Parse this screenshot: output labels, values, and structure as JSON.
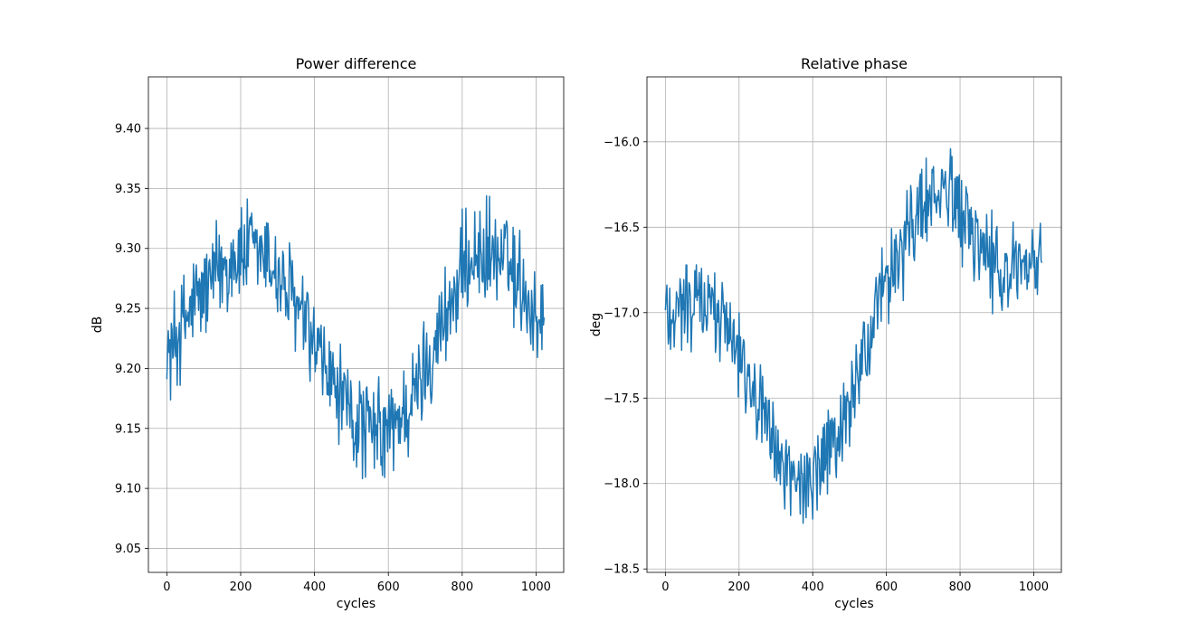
{
  "chart_data": [
    {
      "type": "line",
      "title": "Power difference",
      "xlabel": "cycles",
      "ylabel": "dB",
      "xlim": [
        -50,
        1075
      ],
      "ylim": [
        9.03,
        9.443
      ],
      "xticks": [
        0,
        200,
        400,
        600,
        800,
        1000
      ],
      "yticks": [
        9.05,
        9.1,
        9.15,
        9.2,
        9.25,
        9.3,
        9.35,
        9.4
      ],
      "ytick_labels": [
        "9.05",
        "9.10",
        "9.15",
        "9.20",
        "9.25",
        "9.30",
        "9.35",
        "9.40"
      ],
      "grid": true,
      "color": "#1f77b4",
      "series": [
        {
          "x": [
            0,
            25,
            50,
            75,
            100,
            125,
            150,
            175,
            200,
            225,
            250,
            275,
            300,
            325,
            350,
            375,
            400,
            425,
            450,
            475,
            500,
            525,
            550,
            575,
            600,
            625,
            650,
            675,
            700,
            725,
            750,
            775,
            800,
            825,
            850,
            875,
            900,
            925,
            950,
            975,
            1000,
            1023
          ],
          "y": [
            9.21,
            9.225,
            9.24,
            9.255,
            9.265,
            9.275,
            9.285,
            9.29,
            9.295,
            9.298,
            9.295,
            9.29,
            9.28,
            9.265,
            9.25,
            9.235,
            9.215,
            9.2,
            9.185,
            9.17,
            9.16,
            9.152,
            9.148,
            9.145,
            9.148,
            9.155,
            9.165,
            9.18,
            9.2,
            9.22,
            9.24,
            9.26,
            9.28,
            9.29,
            9.295,
            9.296,
            9.292,
            9.285,
            9.275,
            9.26,
            9.245,
            9.235
          ],
          "noise_amplitude": 0.055
        }
      ]
    },
    {
      "type": "line",
      "title": "Relative phase",
      "xlabel": "cycles",
      "ylabel": "deg",
      "xlim": [
        -50,
        1075
      ],
      "ylim": [
        -18.52,
        -15.62
      ],
      "xticks": [
        0,
        200,
        400,
        600,
        800,
        1000
      ],
      "yticks": [
        -18.5,
        -18.0,
        -17.5,
        -17.0,
        -16.5,
        -16.0
      ],
      "ytick_labels": [
        "−18.5",
        "−18.0",
        "−17.5",
        "−17.0",
        "−16.5",
        "−16.0"
      ],
      "grid": true,
      "color": "#1f77b4",
      "series": [
        {
          "x": [
            0,
            25,
            50,
            75,
            100,
            125,
            150,
            175,
            200,
            225,
            250,
            275,
            300,
            325,
            350,
            375,
            400,
            425,
            450,
            475,
            500,
            525,
            550,
            575,
            600,
            625,
            650,
            675,
            700,
            725,
            750,
            775,
            800,
            825,
            850,
            875,
            900,
            925,
            950,
            975,
            1000,
            1023
          ],
          "y": [
            -17.0,
            -16.98,
            -16.96,
            -16.95,
            -16.95,
            -16.97,
            -17.0,
            -17.08,
            -17.2,
            -17.35,
            -17.52,
            -17.68,
            -17.82,
            -17.92,
            -17.98,
            -18.0,
            -17.98,
            -17.92,
            -17.82,
            -17.68,
            -17.52,
            -17.35,
            -17.17,
            -17.0,
            -16.85,
            -16.7,
            -16.57,
            -16.45,
            -16.37,
            -16.32,
            -16.3,
            -16.33,
            -16.4,
            -16.5,
            -16.6,
            -16.68,
            -16.73,
            -16.77,
            -16.78,
            -16.77,
            -16.74,
            -16.72
          ],
          "noise_amplitude": 0.35
        }
      ]
    }
  ]
}
